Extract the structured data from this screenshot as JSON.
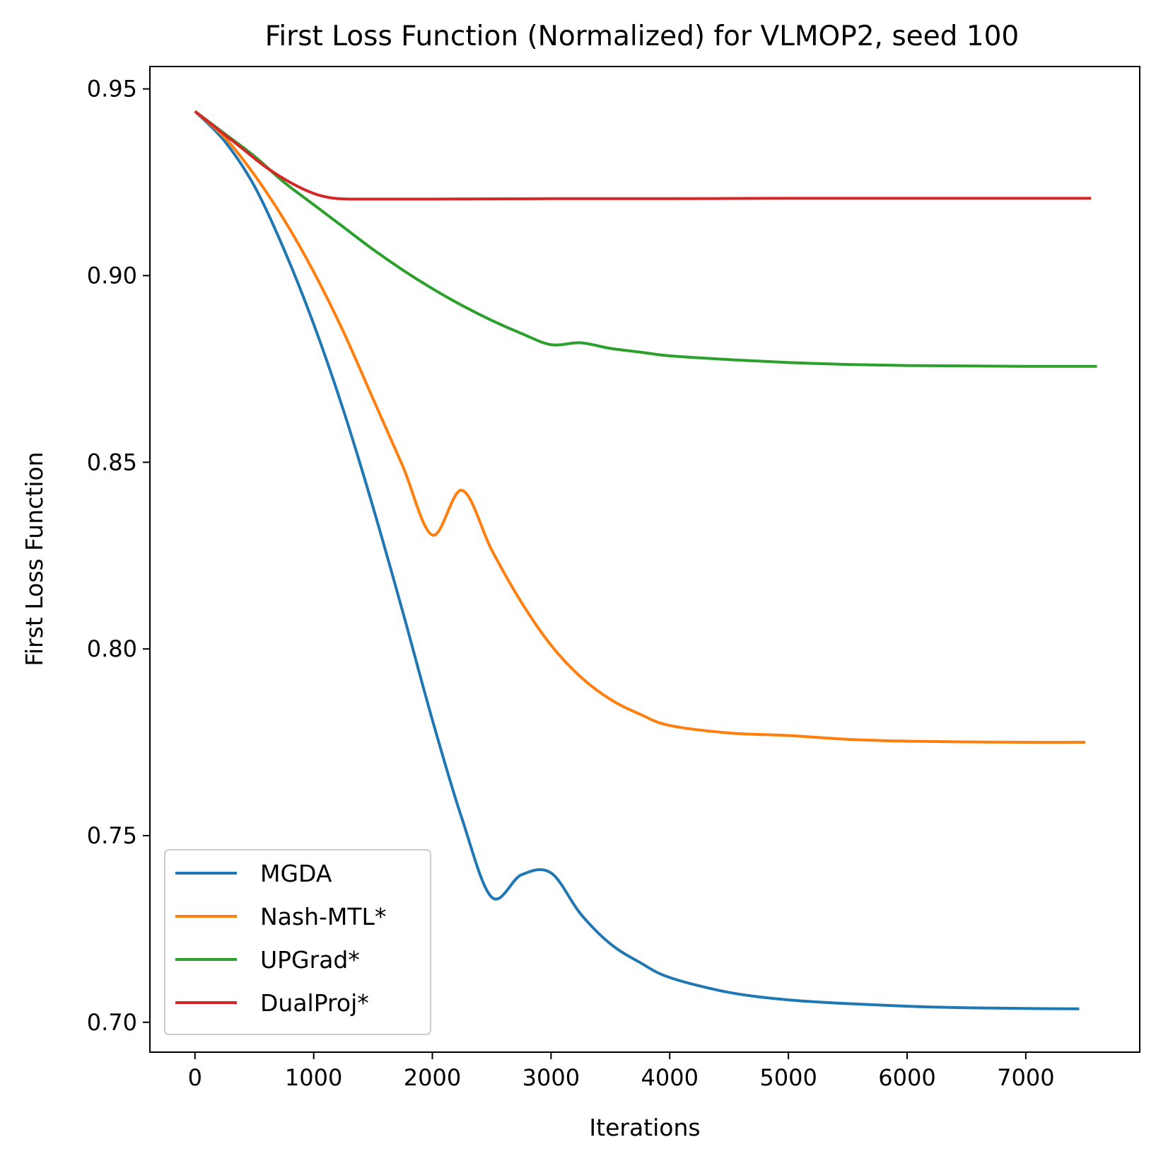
{
  "chart_data": {
    "type": "line",
    "title": "First Loss Function (Normalized) for VLMOP2, seed 100",
    "xlabel": "Iterations",
    "ylabel": "First Loss Function",
    "xlim": [
      -380,
      7960
    ],
    "ylim": [
      0.692,
      0.956
    ],
    "xticks": [
      0,
      1000,
      2000,
      3000,
      4000,
      5000,
      6000,
      7000
    ],
    "xtick_labels": [
      "0",
      "1000",
      "2000",
      "3000",
      "4000",
      "5000",
      "6000",
      "7000"
    ],
    "yticks": [
      0.7,
      0.75,
      0.8,
      0.85,
      0.9,
      0.95
    ],
    "ytick_labels": [
      "0.70",
      "0.75",
      "0.80",
      "0.85",
      "0.90",
      "0.95"
    ],
    "grid": false,
    "legend_position": "lower-left",
    "series": [
      {
        "name": "MGDA",
        "color": "#1f77b4",
        "x": [
          0,
          250,
          500,
          750,
          1000,
          1250,
          1500,
          1750,
          2000,
          2250,
          2500,
          2750,
          3000,
          3250,
          3500,
          3750,
          4000,
          4500,
          5000,
          5500,
          6000,
          6500,
          7000,
          7450
        ],
        "y": [
          0.944,
          0.936,
          0.924,
          0.907,
          0.887,
          0.864,
          0.838,
          0.81,
          0.781,
          0.7545,
          0.7335,
          0.7395,
          0.74,
          0.729,
          0.721,
          0.716,
          0.712,
          0.708,
          0.706,
          0.705,
          0.7043,
          0.7039,
          0.7037,
          0.7036
        ]
      },
      {
        "name": "Nash-MTL*",
        "color": "#ff7f0e",
        "x": [
          0,
          250,
          500,
          750,
          1000,
          1250,
          1500,
          1750,
          2000,
          2250,
          2500,
          2750,
          3000,
          3250,
          3500,
          3750,
          4000,
          4500,
          5000,
          5500,
          6000,
          6500,
          7000,
          7500
        ],
        "y": [
          0.944,
          0.937,
          0.927,
          0.915,
          0.901,
          0.885,
          0.867,
          0.849,
          0.8305,
          0.8425,
          0.8265,
          0.8125,
          0.801,
          0.7925,
          0.7865,
          0.7825,
          0.7795,
          0.7775,
          0.7768,
          0.7758,
          0.7753,
          0.7751,
          0.775,
          0.775
        ]
      },
      {
        "name": "UPGrad*",
        "color": "#2ca02c",
        "x": [
          0,
          250,
          500,
          750,
          1000,
          1250,
          1500,
          1750,
          2000,
          2250,
          2500,
          2750,
          3000,
          3250,
          3500,
          3750,
          4000,
          4500,
          5000,
          5500,
          6000,
          6500,
          7000,
          7600
        ],
        "y": [
          0.944,
          0.938,
          0.932,
          0.925,
          0.919,
          0.913,
          0.907,
          0.9015,
          0.8965,
          0.892,
          0.888,
          0.8845,
          0.8815,
          0.882,
          0.8805,
          0.8795,
          0.8785,
          0.8775,
          0.8767,
          0.8762,
          0.8759,
          0.8758,
          0.8757,
          0.8757
        ]
      },
      {
        "name": "DualProj*",
        "color": "#d62728",
        "x": [
          0,
          200,
          400,
          600,
          800,
          1000,
          1150,
          1300,
          1500,
          2000,
          3000,
          4000,
          5000,
          6000,
          7000,
          7550
        ],
        "y": [
          0.944,
          0.939,
          0.934,
          0.929,
          0.925,
          0.922,
          0.9208,
          0.9205,
          0.9205,
          0.9205,
          0.9206,
          0.9206,
          0.9207,
          0.9207,
          0.9207,
          0.9207
        ]
      }
    ]
  }
}
